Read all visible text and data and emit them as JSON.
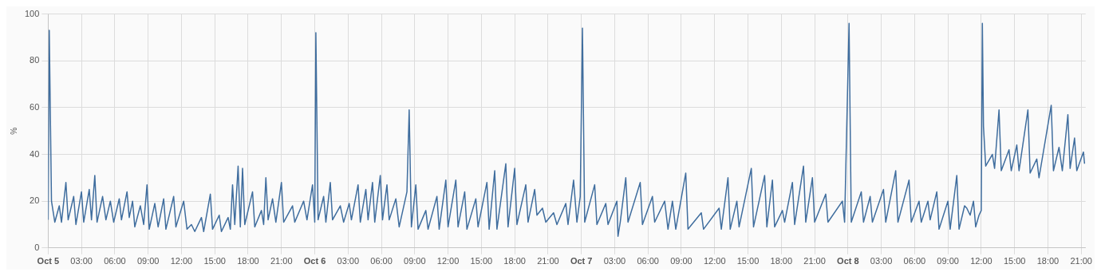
{
  "chart_data": {
    "type": "line",
    "ylabel": "%",
    "xlim": [
      "--10-05T00:00",
      "--10-08T21:24"
    ],
    "ylim": [
      0,
      100
    ],
    "yticks": [
      0,
      20,
      40,
      60,
      80,
      100
    ],
    "xticks": [
      {
        "value": "--10-05T00:00",
        "label": "Oct 5"
      },
      {
        "value": "--10-05T03:00",
        "label": "03:00"
      },
      {
        "value": "--10-05T06:00",
        "label": "06:00"
      },
      {
        "value": "--10-05T09:00",
        "label": "09:00"
      },
      {
        "value": "--10-05T12:00",
        "label": "12:00"
      },
      {
        "value": "--10-05T15:00",
        "label": "15:00"
      },
      {
        "value": "--10-05T18:00",
        "label": "18:00"
      },
      {
        "value": "--10-05T21:00",
        "label": "21:00"
      },
      {
        "value": "--10-06T00:00",
        "label": "Oct 6"
      },
      {
        "value": "--10-06T03:00",
        "label": "03:00"
      },
      {
        "value": "--10-06T06:00",
        "label": "06:00"
      },
      {
        "value": "--10-06T09:00",
        "label": "09:00"
      },
      {
        "value": "--10-06T12:00",
        "label": "12:00"
      },
      {
        "value": "--10-06T15:00",
        "label": "15:00"
      },
      {
        "value": "--10-06T18:00",
        "label": "18:00"
      },
      {
        "value": "--10-06T21:00",
        "label": "21:00"
      },
      {
        "value": "--10-07T00:00",
        "label": "Oct 7"
      },
      {
        "value": "--10-07T03:00",
        "label": "03:00"
      },
      {
        "value": "--10-07T06:00",
        "label": "06:00"
      },
      {
        "value": "--10-07T09:00",
        "label": "09:00"
      },
      {
        "value": "--10-07T12:00",
        "label": "12:00"
      },
      {
        "value": "--10-07T15:00",
        "label": "15:00"
      },
      {
        "value": "--10-07T18:00",
        "label": "18:00"
      },
      {
        "value": "--10-07T21:00",
        "label": "21:00"
      },
      {
        "value": "--10-08T00:00",
        "label": "Oct 8"
      },
      {
        "value": "--10-08T03:00",
        "label": "03:00"
      },
      {
        "value": "--10-08T06:00",
        "label": "06:00"
      },
      {
        "value": "--10-08T09:00",
        "label": "09:00"
      },
      {
        "value": "--10-08T12:00",
        "label": "12:00"
      },
      {
        "value": "--10-08T15:00",
        "label": "15:00"
      },
      {
        "value": "--10-08T18:00",
        "label": "18:00"
      },
      {
        "value": "--10-08T21:00",
        "label": "21:00"
      }
    ],
    "grid": true,
    "legend": false,
    "marker": "none",
    "line_style": "solid",
    "series": [
      {
        "color": "#3f6d9e",
        "x": [
          "--10-05T00:00",
          "--10-05T00:06",
          "--10-05T00:18",
          "--10-05T00:36",
          "--10-05T01:00",
          "--10-05T01:12",
          "--10-05T01:36",
          "--10-05T01:48",
          "--10-05T02:18",
          "--10-05T02:30",
          "--10-05T03:00",
          "--10-05T03:12",
          "--10-05T03:42",
          "--10-05T03:54",
          "--10-05T04:12",
          "--10-05T04:24",
          "--10-05T04:54",
          "--10-05T05:12",
          "--10-05T05:36",
          "--10-05T05:54",
          "--10-05T06:24",
          "--10-05T06:36",
          "--10-05T07:06",
          "--10-05T07:18",
          "--10-05T07:36",
          "--10-05T07:48",
          "--10-05T08:18",
          "--10-05T08:36",
          "--10-05T08:54",
          "--10-05T09:06",
          "--10-05T09:36",
          "--10-05T09:54",
          "--10-05T10:24",
          "--10-05T10:36",
          "--10-05T11:18",
          "--10-05T11:30",
          "--10-05T12:12",
          "--10-05T12:30",
          "--10-05T12:54",
          "--10-05T13:12",
          "--10-05T13:48",
          "--10-05T14:00",
          "--10-05T14:36",
          "--10-05T14:48",
          "--10-05T15:24",
          "--10-05T15:36",
          "--10-05T16:12",
          "--10-05T16:24",
          "--10-05T16:36",
          "--10-05T16:48",
          "--10-05T17:06",
          "--10-05T17:18",
          "--10-05T17:30",
          "--10-05T17:42",
          "--10-05T18:24",
          "--10-05T18:36",
          "--10-05T19:12",
          "--10-05T19:24",
          "--10-05T19:36",
          "--10-05T19:48",
          "--10-05T20:12",
          "--10-05T20:30",
          "--10-05T21:00",
          "--10-05T21:12",
          "--10-05T22:00",
          "--10-05T22:12",
          "--10-05T23:00",
          "--10-05T23:18",
          "--10-05T23:48",
          "--10-06T00:00",
          "--10-06T00:06",
          "--10-06T00:18",
          "--10-06T00:48",
          "--10-06T01:00",
          "--10-06T01:24",
          "--10-06T01:36",
          "--10-06T02:18",
          "--10-06T02:36",
          "--10-06T03:06",
          "--10-06T03:18",
          "--10-06T03:54",
          "--10-06T04:06",
          "--10-06T04:36",
          "--10-06T04:48",
          "--10-06T05:12",
          "--10-06T05:24",
          "--10-06T05:54",
          "--10-06T06:06",
          "--10-06T06:30",
          "--10-06T06:42",
          "--10-06T07:18",
          "--10-06T07:36",
          "--10-06T08:18",
          "--10-06T08:30",
          "--10-06T08:42",
          "--10-06T09:06",
          "--10-06T09:18",
          "--10-06T10:00",
          "--10-06T10:12",
          "--10-06T11:00",
          "--10-06T11:12",
          "--10-06T11:48",
          "--10-06T12:00",
          "--10-06T12:42",
          "--10-06T12:54",
          "--10-06T13:30",
          "--10-06T13:42",
          "--10-06T14:30",
          "--10-06T14:42",
          "--10-06T15:30",
          "--10-06T15:42",
          "--10-06T16:12",
          "--10-06T16:24",
          "--10-06T17:12",
          "--10-06T17:24",
          "--10-06T18:00",
          "--10-06T18:12",
          "--10-06T19:00",
          "--10-06T19:12",
          "--10-06T19:48",
          "--10-06T20:00",
          "--10-06T20:30",
          "--10-06T20:48",
          "--10-06T21:30",
          "--10-06T21:48",
          "--10-06T22:36",
          "--10-06T22:48",
          "--10-06T23:18",
          "--10-06T23:36",
          "--10-06T23:54",
          "--10-07T00:06",
          "--10-07T00:18",
          "--10-07T01:12",
          "--10-07T01:24",
          "--10-07T02:12",
          "--10-07T02:24",
          "--10-07T03:12",
          "--10-07T03:18",
          "--10-07T03:30",
          "--10-07T04:00",
          "--10-07T04:12",
          "--10-07T05:18",
          "--10-07T05:30",
          "--10-07T06:24",
          "--10-07T06:36",
          "--10-07T07:30",
          "--10-07T07:48",
          "--10-07T08:12",
          "--10-07T08:30",
          "--10-07T09:24",
          "--10-07T09:36",
          "--10-07T10:48",
          "--10-07T11:00",
          "--10-07T12:24",
          "--10-07T12:36",
          "--10-07T13:12",
          "--10-07T13:24",
          "--10-07T14:00",
          "--10-07T14:12",
          "--10-07T15:18",
          "--10-07T15:30",
          "--10-07T16:30",
          "--10-07T16:42",
          "--10-07T17:12",
          "--10-07T17:24",
          "--10-07T18:06",
          "--10-07T18:18",
          "--10-07T19:00",
          "--10-07T19:12",
          "--10-07T20:00",
          "--10-07T20:12",
          "--10-07T20:48",
          "--10-07T21:00",
          "--10-07T22:00",
          "--10-07T22:12",
          "--10-07T23:30",
          "--10-07T23:42",
          "--10-08T00:06",
          "--10-08T00:18",
          "--10-08T01:12",
          "--10-08T01:24",
          "--10-08T02:00",
          "--10-08T02:12",
          "--10-08T03:12",
          "--10-08T03:24",
          "--10-08T04:18",
          "--10-08T04:30",
          "--10-08T05:30",
          "--10-08T05:42",
          "--10-08T06:24",
          "--10-08T06:36",
          "--10-08T07:12",
          "--10-08T07:24",
          "--10-08T08:00",
          "--10-08T08:12",
          "--10-08T09:00",
          "--10-08T09:12",
          "--10-08T09:48",
          "--10-08T10:00",
          "--10-08T10:30",
          "--10-08T10:42",
          "--10-08T11:00",
          "--10-08T11:18",
          "--10-08T11:30",
          "--10-08T11:48",
          "--10-08T12:00",
          "--10-08T12:06",
          "--10-08T12:12",
          "--10-08T12:24",
          "--10-08T13:00",
          "--10-08T13:12",
          "--10-08T13:36",
          "--10-08T13:48",
          "--10-08T14:30",
          "--10-08T14:42",
          "--10-08T15:12",
          "--10-08T15:24",
          "--10-08T16:12",
          "--10-08T16:24",
          "--10-08T17:00",
          "--10-08T17:12",
          "--10-08T18:18",
          "--10-08T18:30",
          "--10-08T19:00",
          "--10-08T19:18",
          "--10-08T19:48",
          "--10-08T20:00",
          "--10-08T20:24",
          "--10-08T20:36",
          "--10-08T21:12",
          "--10-08T21:18"
        ],
        "values": [
          12,
          93,
          20,
          11,
          18,
          11,
          28,
          12,
          22,
          10,
          24,
          11,
          25,
          12,
          31,
          11,
          22,
          12,
          20,
          11,
          21,
          12,
          24,
          13,
          20,
          9,
          18,
          10,
          27,
          8,
          19,
          9,
          21,
          8,
          22,
          9,
          20,
          8,
          10,
          7,
          13,
          7,
          23,
          8,
          14,
          7,
          13,
          8,
          27,
          10,
          35,
          9,
          34,
          10,
          24,
          9,
          16,
          10,
          30,
          12,
          21,
          11,
          28,
          11,
          18,
          11,
          20,
          12,
          27,
          11,
          92,
          12,
          22,
          11,
          28,
          12,
          18,
          11,
          19,
          12,
          27,
          11,
          25,
          12,
          28,
          11,
          31,
          12,
          27,
          12,
          21,
          9,
          24,
          59,
          9,
          27,
          8,
          16,
          8,
          22,
          8,
          29,
          9,
          29,
          9,
          24,
          8,
          21,
          9,
          28,
          8,
          33,
          8,
          36,
          9,
          34,
          10,
          27,
          11,
          25,
          14,
          17,
          11,
          15,
          10,
          19,
          10,
          29,
          11,
          22,
          94,
          11,
          27,
          10,
          19,
          10,
          20,
          5,
          11,
          30,
          11,
          28,
          10,
          22,
          11,
          20,
          8,
          20,
          8,
          32,
          8,
          15,
          8,
          17,
          8,
          30,
          8,
          20,
          9,
          34,
          9,
          31,
          9,
          29,
          9,
          16,
          11,
          28,
          10,
          35,
          11,
          30,
          11,
          23,
          11,
          20,
          11,
          96,
          11,
          24,
          11,
          22,
          11,
          25,
          11,
          33,
          11,
          29,
          11,
          20,
          11,
          20,
          12,
          24,
          8,
          20,
          8,
          31,
          8,
          18,
          17,
          14,
          20,
          9,
          14,
          16,
          96,
          52,
          35,
          40,
          34,
          59,
          33,
          42,
          33,
          44,
          33,
          59,
          32,
          38,
          30,
          61,
          33,
          43,
          33,
          57,
          34,
          47,
          33,
          41,
          36
        ]
      }
    ]
  }
}
